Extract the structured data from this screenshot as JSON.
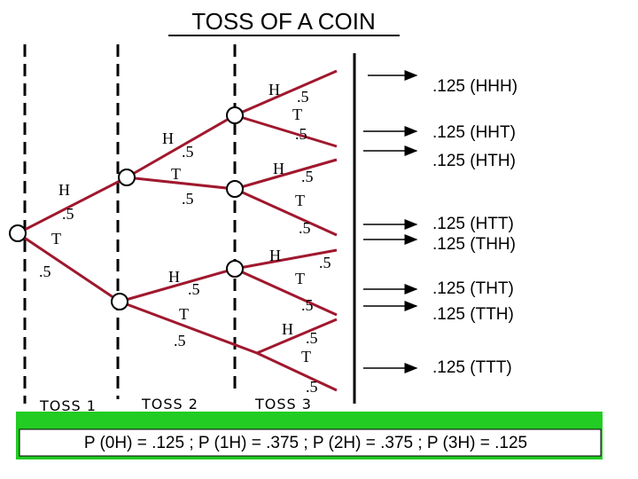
{
  "title": "TOSS OF A COIN",
  "tosses": [
    "TOSS 1",
    "TOSS 2",
    "TOSS 3"
  ],
  "branches": [
    {
      "label": "H",
      "prob": ".5"
    },
    {
      "label": "T",
      "prob": ".5"
    },
    {
      "label": "H",
      "prob": ".5"
    },
    {
      "label": "T",
      "prob": ".5"
    },
    {
      "label": "H",
      "prob": ".5"
    },
    {
      "label": "T",
      "prob": ".5"
    },
    {
      "label": "H",
      "prob": ".5"
    },
    {
      "label": "T",
      "prob": ".5"
    },
    {
      "label": "H",
      "prob": ".5"
    },
    {
      "label": "T",
      "prob": ".5"
    },
    {
      "label": "H",
      "prob": ".5"
    },
    {
      "label": "T",
      "prob": ".5"
    },
    {
      "label": "H",
      "prob": ".5"
    },
    {
      "label": "T",
      "prob": ".5"
    }
  ],
  "outcomes": [
    ".125 (HHH)",
    ".125 (HHT)",
    ".125 (HTH)",
    ".125 (HTT)",
    ".125 (THH)",
    ".125 (THT)",
    ".125 (TTH)",
    ".125 (TTT)"
  ],
  "summary": "P (0H) = .125 ; P (1H) = .375 ; P (2H) = .375 ; P (3H) = .125"
}
